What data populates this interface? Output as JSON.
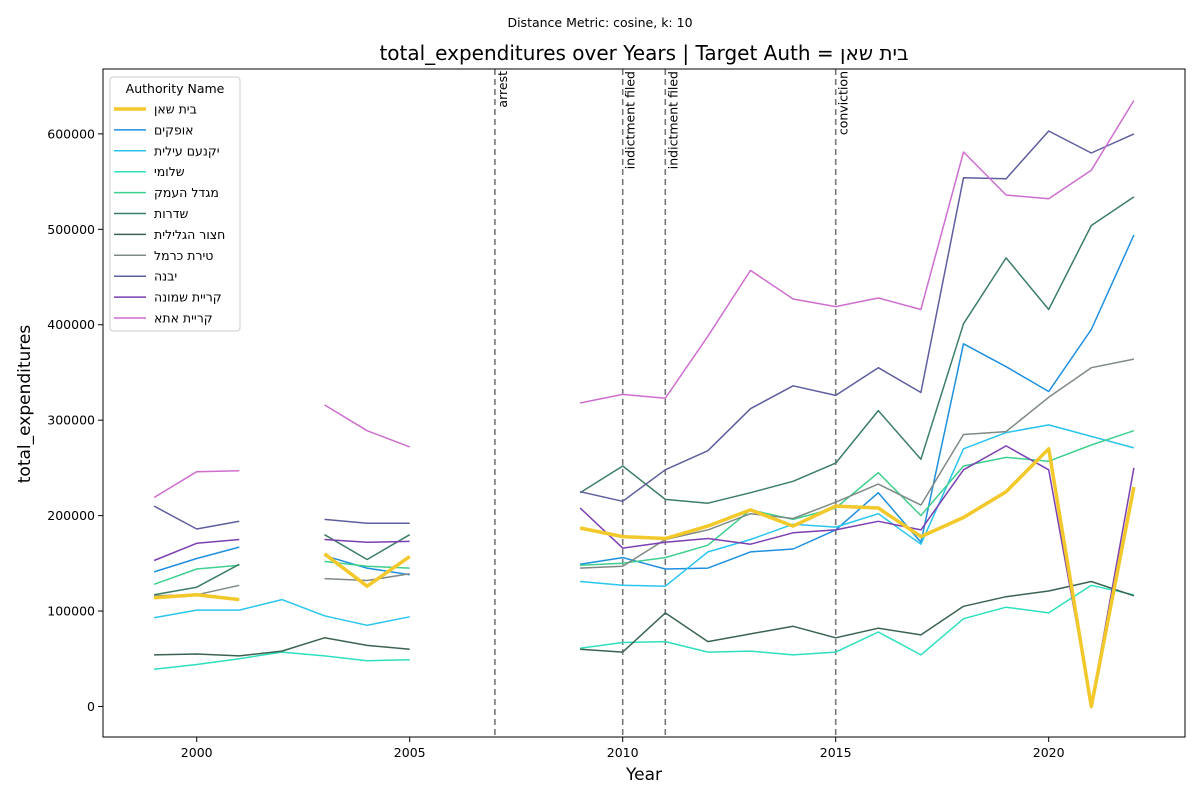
{
  "chart_data": {
    "type": "line",
    "suptitle": "Distance Metric: cosine, k: 10",
    "title": "total_expenditures over Years | Target Auth = בית שאן",
    "xlabel": "Year",
    "ylabel": "total_expenditures",
    "xlim": [
      1997.8,
      2023.2
    ],
    "ylim": [
      -32000,
      668000
    ],
    "xticks": [
      2000,
      2005,
      2010,
      2015,
      2020
    ],
    "yticks": [
      0,
      100000,
      200000,
      300000,
      400000,
      500000,
      600000
    ],
    "grid": false,
    "legend": {
      "title": "Authority Name",
      "placement": "top-left"
    },
    "events": [
      {
        "x": 2007,
        "label": "arrest"
      },
      {
        "x": 2010,
        "label": "indictment filed"
      },
      {
        "x": 2011,
        "label": "indictment filed"
      },
      {
        "x": 2015,
        "label": "conviction"
      }
    ],
    "x": [
      1999,
      2000,
      2001,
      2002,
      2003,
      2004,
      2005,
      2006,
      2007,
      2008,
      2009,
      2010,
      2011,
      2012,
      2013,
      2014,
      2015,
      2016,
      2017,
      2018,
      2019,
      2020,
      2021,
      2022
    ],
    "series": [
      {
        "name": "בית שאן",
        "color": "#f2c82a",
        "width": 3.5,
        "target": true,
        "values": [
          114000,
          117000,
          112000,
          null,
          160000,
          126000,
          157000,
          null,
          null,
          null,
          187000,
          178000,
          176000,
          189000,
          206000,
          189000,
          210000,
          208000,
          178000,
          198000,
          225000,
          270000,
          0,
          230000
        ]
      },
      {
        "name": "אופקים",
        "color": "#1f8fe0",
        "width": 1.5,
        "values": [
          141000,
          155000,
          167000,
          null,
          158000,
          145000,
          138000,
          null,
          null,
          null,
          149000,
          156000,
          144000,
          145000,
          162000,
          165000,
          185000,
          224000,
          172000,
          380000,
          356000,
          330000,
          395000,
          494000
        ]
      },
      {
        "name": "יקנעם עילית",
        "color": "#29c5ee",
        "width": 1.5,
        "values": [
          93000,
          101000,
          101000,
          112000,
          95000,
          85000,
          94000,
          null,
          null,
          null,
          131000,
          127000,
          126000,
          162000,
          175000,
          191000,
          188000,
          202000,
          170000,
          270000,
          287000,
          295000,
          283000,
          271000
        ]
      },
      {
        "name": "שלומי",
        "color": "#2ee0c0",
        "width": 1.5,
        "values": [
          39000,
          44000,
          50000,
          57000,
          53000,
          48000,
          49000,
          null,
          null,
          null,
          61000,
          67000,
          68000,
          57000,
          58000,
          54000,
          57000,
          78000,
          54000,
          92000,
          104000,
          98000,
          127000,
          117000
        ]
      },
      {
        "name": "מגדל העמק",
        "color": "#3ed08e",
        "width": 1.5,
        "values": [
          128000,
          144000,
          148000,
          null,
          152000,
          147000,
          145000,
          null,
          null,
          null,
          148000,
          150000,
          156000,
          169000,
          206000,
          196000,
          208000,
          245000,
          200000,
          252000,
          261000,
          257000,
          274000,
          289000
        ]
      },
      {
        "name": "שדרות",
        "color": "#3c7e64",
        "width": 1.5,
        "values": [
          117000,
          125000,
          149000,
          null,
          180000,
          154000,
          180000,
          null,
          null,
          null,
          224000,
          252000,
          217000,
          213000,
          224000,
          236000,
          255000,
          310000,
          259000,
          401000,
          470000,
          416000,
          504000,
          534000
        ]
      },
      {
        "name": "חצור הגלילית",
        "color": "#3b6450",
        "width": 1.5,
        "values": [
          54000,
          55000,
          53000,
          58000,
          72000,
          64000,
          60000,
          null,
          null,
          null,
          60000,
          57000,
          98000,
          68000,
          76000,
          84000,
          72000,
          82000,
          75000,
          105000,
          115000,
          121000,
          131000,
          116000
        ]
      },
      {
        "name": "טירת כרמל",
        "color": "#7f8a84",
        "width": 1.5,
        "values": [
          116000,
          117000,
          127000,
          null,
          134000,
          132000,
          139000,
          null,
          null,
          null,
          145000,
          147000,
          175000,
          185000,
          202000,
          197000,
          214000,
          233000,
          211000,
          285000,
          288000,
          324000,
          355000,
          364000
        ]
      },
      {
        "name": "יבנה",
        "color": "#5e5e9e",
        "width": 1.5,
        "values": [
          210000,
          186000,
          194000,
          null,
          196000,
          192000,
          192000,
          null,
          null,
          null,
          225000,
          215000,
          248000,
          268000,
          312000,
          336000,
          326000,
          355000,
          329000,
          554000,
          553000,
          603000,
          580000,
          600000
        ]
      },
      {
        "name": "קריית שמונה",
        "color": "#7c3fb2",
        "width": 1.5,
        "values": [
          153000,
          171000,
          175000,
          null,
          175000,
          172000,
          173000,
          null,
          null,
          null,
          208000,
          166000,
          172000,
          176000,
          170000,
          182000,
          185000,
          194000,
          185000,
          248000,
          273000,
          248000,
          2000,
          250000
        ]
      },
      {
        "name": "קריית אתא",
        "color": "#cf6ecf",
        "width": 1.5,
        "values": [
          219000,
          246000,
          247000,
          null,
          316000,
          289000,
          272000,
          null,
          null,
          null,
          318000,
          327000,
          323000,
          388000,
          457000,
          427000,
          419000,
          428000,
          416000,
          581000,
          536000,
          532000,
          562000,
          635000
        ]
      }
    ]
  }
}
